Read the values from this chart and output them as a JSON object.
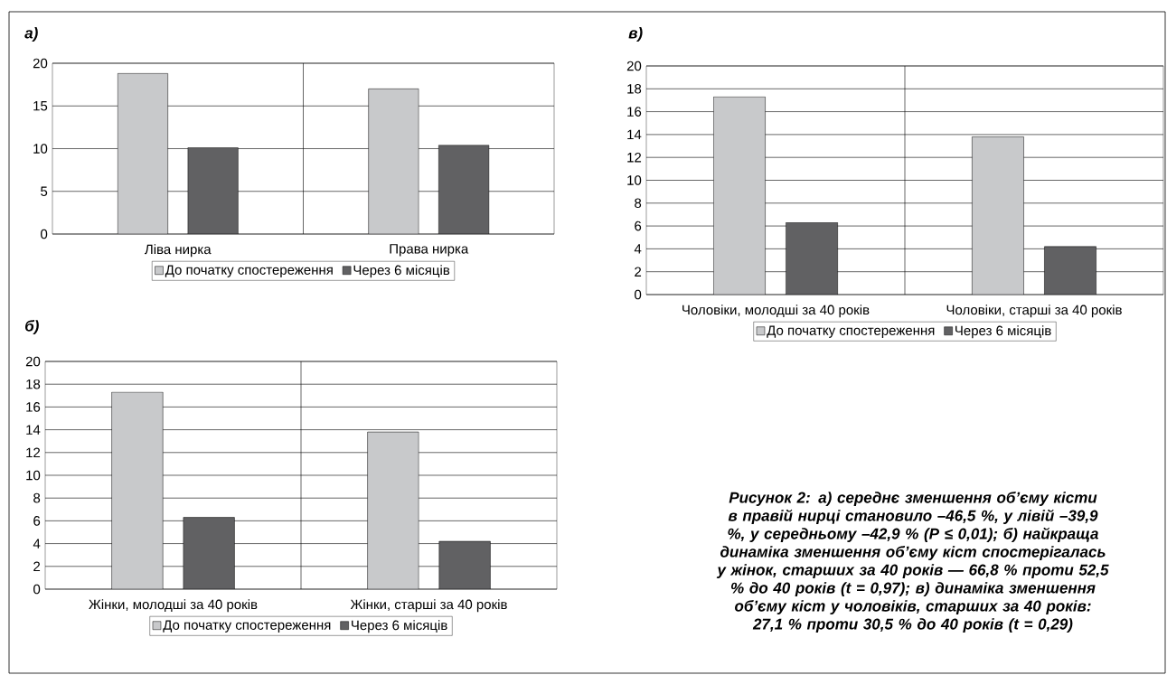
{
  "chart_data": [
    {
      "type": "bar",
      "title": "а)",
      "categories": [
        "Ліва нирка",
        "Права нирка"
      ],
      "series": [
        {
          "name": "До початку спостереження",
          "color": "#c8c9cb",
          "values": [
            18.8,
            17.0
          ]
        },
        {
          "name": "Через 6 місяців",
          "color": "#616163",
          "values": [
            10.1,
            10.4
          ]
        }
      ],
      "ylim": [
        0,
        20
      ],
      "yticks": [
        0,
        5,
        10,
        15,
        20
      ],
      "grid": true,
      "legend": "bottom"
    },
    {
      "type": "bar",
      "title": "в)",
      "categories": [
        "Чоловіки, молодші за 40 років",
        "Чоловіки, старші за 40 років"
      ],
      "series": [
        {
          "name": "До початку спостереження",
          "color": "#c8c9cb",
          "values": [
            17.3,
            13.8
          ]
        },
        {
          "name": "Через 6 місяців",
          "color": "#616163",
          "values": [
            6.3,
            4.2
          ]
        }
      ],
      "ylim": [
        0,
        20
      ],
      "yticks": [
        0,
        2,
        4,
        6,
        8,
        10,
        12,
        14,
        16,
        18,
        20
      ],
      "grid": true,
      "legend": "bottom"
    },
    {
      "type": "bar",
      "title": "б)",
      "categories": [
        "Жінки, молодші за 40 років",
        "Жінки, старші за 40 років"
      ],
      "series": [
        {
          "name": "До початку спостереження",
          "color": "#c8c9cb",
          "values": [
            17.3,
            13.8
          ]
        },
        {
          "name": "Через 6 місяців",
          "color": "#616163",
          "values": [
            6.3,
            4.2
          ]
        }
      ],
      "ylim": [
        0,
        20
      ],
      "yticks": [
        0,
        2,
        4,
        6,
        8,
        10,
        12,
        14,
        16,
        18,
        20
      ],
      "grid": true,
      "legend": "bottom"
    },
    {
      "type": "other",
      "annotations": [
        "Рисунок 2: а) середнє зменшення об’єму кісти в правій нирці становило –46,5 %, у лівій –39,9 %, у середньому –42,9 % (P ≤ 0,01); б) найкраща динаміка зменшення об’єму кіст спостерігалась у жінок, старших за 40 років — 66,8 % проти 52,5 % до 40 років (t = 0,97); в) динаміка зменшення об’єму кіст у чоловіків, старших за 40 років: 27,1 % проти 30,5 % до 40 років (t = 0,29)"
      ]
    }
  ]
}
